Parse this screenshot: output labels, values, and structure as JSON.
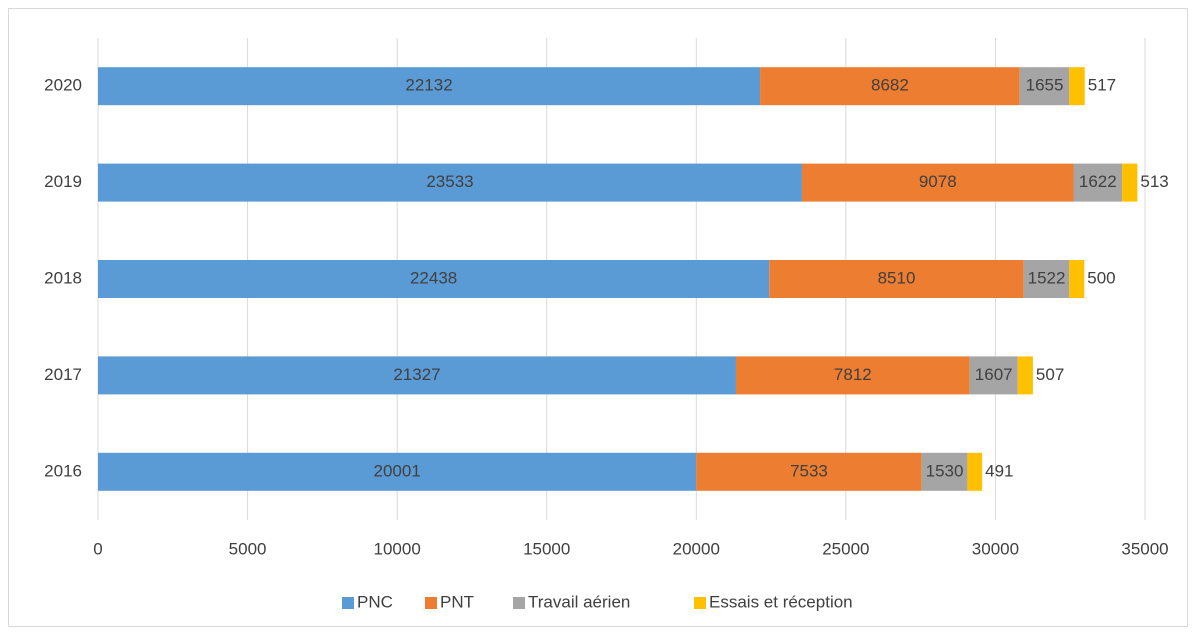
{
  "chart_data": {
    "type": "bar",
    "orientation": "horizontal",
    "stacked": true,
    "categories": [
      "2016",
      "2017",
      "2018",
      "2019",
      "2020"
    ],
    "series": [
      {
        "name": "PNC",
        "color": "#5b9bd5",
        "values": [
          20001,
          21327,
          22438,
          23533,
          22132
        ]
      },
      {
        "name": "PNT",
        "color": "#ed7d31",
        "values": [
          7533,
          7812,
          8510,
          9078,
          8682
        ]
      },
      {
        "name": "Travail aérien",
        "color": "#a5a5a5",
        "values": [
          1530,
          1607,
          1522,
          1622,
          1655
        ]
      },
      {
        "name": "Essais et réception",
        "color": "#ffc000",
        "values": [
          491,
          507,
          500,
          513,
          517
        ]
      }
    ],
    "xlim": [
      0,
      35000
    ],
    "xticks": [
      0,
      5000,
      10000,
      15000,
      20000,
      25000,
      30000,
      35000
    ],
    "grid": true,
    "legend": "bottom"
  }
}
